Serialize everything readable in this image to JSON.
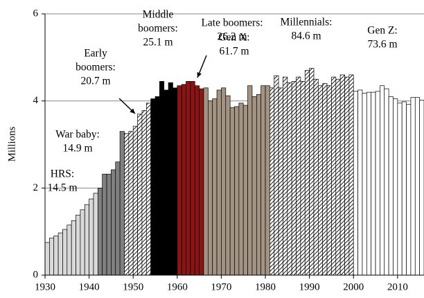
{
  "chart_data": {
    "type": "bar",
    "y_label": "Millions",
    "xlim": [
      1930,
      2016
    ],
    "xticks": [
      1930,
      1940,
      1950,
      1960,
      1970,
      1980,
      1990,
      2000,
      2010
    ],
    "ylim": [
      0,
      6
    ],
    "yticks": [
      0,
      2,
      4,
      6
    ],
    "grid": true,
    "series": [
      {
        "label": [
          "HRS:",
          "14.5 m"
        ],
        "color": "#d9d9d9",
        "hatch": false,
        "x": [
          1930,
          1931,
          1932,
          1933,
          1934,
          1935,
          1936,
          1937,
          1938,
          1939,
          1940,
          1941
        ],
        "values": [
          0.75,
          0.85,
          0.9,
          0.97,
          1.05,
          1.15,
          1.25,
          1.38,
          1.5,
          1.62,
          1.75,
          1.88
        ]
      },
      {
        "label": [
          "War baby:",
          "14.9 m"
        ],
        "color": "#808080",
        "hatch": false,
        "x": [
          1942,
          1943,
          1944,
          1945,
          1946,
          1947
        ],
        "values": [
          2.0,
          2.32,
          2.32,
          2.42,
          2.6,
          3.3
        ]
      },
      {
        "label": [
          "Early",
          "boomers:",
          "20.7 m"
        ],
        "color": "#ffffff",
        "hatch": true,
        "x": [
          1948,
          1949,
          1950,
          1951,
          1952,
          1953
        ],
        "values": [
          3.25,
          3.3,
          3.42,
          3.7,
          3.78,
          3.95
        ]
      },
      {
        "label": [
          "Middle",
          "boomers:",
          "25.1 m"
        ],
        "color": "#000000",
        "hatch": false,
        "x": [
          1954,
          1955,
          1956,
          1957,
          1958,
          1959
        ],
        "values": [
          4.05,
          4.1,
          4.45,
          4.25,
          4.42,
          4.3
        ]
      },
      {
        "label": [
          "Late boomers:",
          "26.2 m"
        ],
        "color": "#8b1414",
        "hatch": false,
        "x": [
          1960,
          1961,
          1962,
          1963,
          1964,
          1965
        ],
        "values": [
          4.35,
          4.38,
          4.45,
          4.45,
          4.35,
          4.28
        ]
      },
      {
        "label": [
          "Gen X:",
          "61.7 m"
        ],
        "color": "#a39382",
        "hatch": false,
        "x": [
          1966,
          1967,
          1968,
          1969,
          1970,
          1971,
          1972,
          1973,
          1974,
          1975,
          1976,
          1977,
          1978,
          1979,
          1980
        ],
        "values": [
          4.3,
          4.0,
          4.05,
          4.25,
          4.3,
          4.12,
          3.85,
          3.87,
          3.95,
          3.9,
          4.35,
          4.1,
          4.15,
          4.35,
          4.35
        ]
      },
      {
        "label": [
          "Millennials:",
          "84.6 m"
        ],
        "color": "#ffffff",
        "hatch": true,
        "x": [
          1981,
          1982,
          1983,
          1984,
          1985,
          1986,
          1987,
          1988,
          1989,
          1990,
          1991,
          1992,
          1993,
          1994,
          1995,
          1996,
          1997,
          1998,
          1999
        ],
        "values": [
          4.3,
          4.58,
          4.3,
          4.55,
          4.42,
          4.45,
          4.55,
          4.45,
          4.7,
          4.75,
          4.5,
          4.35,
          4.4,
          4.35,
          4.55,
          4.5,
          4.6,
          4.55,
          4.6
        ]
      },
      {
        "label": [
          "Gen Z:",
          "73.6 m"
        ],
        "color": "#ffffff",
        "hatch": false,
        "x": [
          2000,
          2001,
          2002,
          2003,
          2004,
          2005,
          2006,
          2007,
          2008,
          2009,
          2010,
          2011,
          2012,
          2013,
          2014,
          2015
        ],
        "values": [
          4.22,
          4.25,
          4.18,
          4.2,
          4.2,
          4.22,
          4.35,
          4.28,
          4.1,
          4.05,
          3.95,
          3.98,
          3.92,
          4.08,
          4.08,
          4.02
        ]
      }
    ]
  }
}
